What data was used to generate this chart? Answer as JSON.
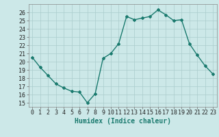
{
  "x": [
    0,
    1,
    2,
    3,
    4,
    5,
    6,
    7,
    8,
    9,
    10,
    11,
    12,
    13,
    14,
    15,
    16,
    17,
    18,
    19,
    20,
    21,
    22,
    23
  ],
  "y": [
    20.5,
    19.3,
    18.3,
    17.3,
    16.8,
    16.4,
    16.3,
    15.0,
    16.1,
    20.4,
    21.0,
    22.2,
    25.5,
    25.1,
    25.3,
    25.5,
    26.3,
    25.7,
    25.0,
    25.1,
    22.2,
    20.8,
    19.5,
    18.5
  ],
  "line_color": "#1a7a6e",
  "marker": "D",
  "marker_size": 2.0,
  "bg_color": "#cce8e8",
  "grid_color": "#aacccc",
  "xlabel": "Humidex (Indice chaleur)",
  "ylabel_ticks": [
    15,
    16,
    17,
    18,
    19,
    20,
    21,
    22,
    23,
    24,
    25,
    26
  ],
  "ylim": [
    14.5,
    27.0
  ],
  "xlim": [
    -0.5,
    23.5
  ],
  "xlabel_fontsize": 7,
  "tick_fontsize": 6,
  "linewidth": 1.0
}
